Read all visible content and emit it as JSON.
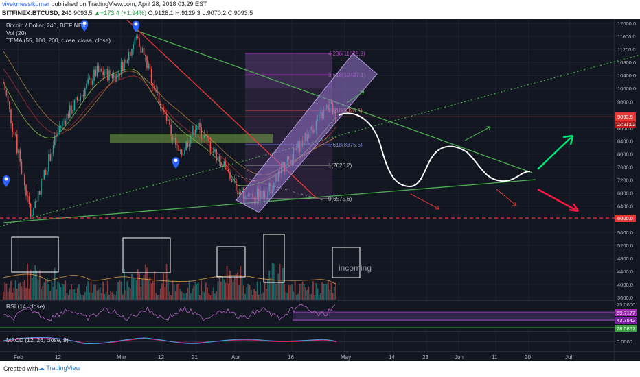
{
  "header": {
    "author": "vivekmessikumar",
    "published_text": "published on TradingView.com, April 28, 2018 03:29 EST",
    "symbol": "BITFINEX:BTCUSD",
    "interval": "240",
    "last": "9093.5",
    "change": "+173.4 (+1.94%)",
    "o": "O:9128.1",
    "h": "H:9129.3",
    "l": "L:9070.2",
    "c": "C:9093.5"
  },
  "legend": {
    "title": "Bitcoin / Dollar, 240, BITFINEX",
    "vol": "Vol (20)",
    "tema": "TEMA (55, 100, 200, close, close, close)",
    "rsi": "RSI (14, close)",
    "macd": "MACD (12, 26, close, 9)"
  },
  "annotations": {
    "incoming": "incoming",
    "fib_4236": "4.236(11025.9)",
    "fib_3618": "3.618(10427.1)",
    "fib_2618": "2.618(9326.1)",
    "fib_1618": "1.618(8375.5)",
    "fib_1": "1(7626.2)",
    "fib_0": "0(6575.6)"
  },
  "price_tags": {
    "current": "9093.5",
    "countdown": "03:31:02",
    "support": "6000.0",
    "rsi_a": "59.7177",
    "rsi_b": "43.7542",
    "rsi_c": "28.5857",
    "rsi_top": "75.0000",
    "macd_zero": "0.0000"
  },
  "chart_data": {
    "type": "line",
    "title": "Bitcoin / Dollar, 240, BITFINEX",
    "price_axis": [
      "12000.0",
      "11600.0",
      "11200.0",
      "10800.0",
      "10400.0",
      "10000.0",
      "9600.0",
      "9200.0",
      "8800.0",
      "8400.0",
      "8000.0",
      "7600.0",
      "7200.0",
      "6800.0",
      "6400.0",
      "6000.0",
      "5600.0",
      "5200.0",
      "4800.0",
      "4400.0",
      "4000.0",
      "3600.0"
    ],
    "time_axis": [
      "Feb",
      "12",
      "Mar",
      "12",
      "21",
      "Apr",
      "16",
      "May",
      "14",
      "23",
      "Jun",
      "11",
      "20",
      "Jul"
    ],
    "series": [
      {
        "x": [
          "Feb 1",
          "Feb 6",
          "Feb 12",
          "Feb 20",
          "Feb 27",
          "Mar 5",
          "Mar 12",
          "Mar 18",
          "Mar 21",
          "Mar 27",
          "Apr 1",
          "Apr 6",
          "Apr 12",
          "Apr 20",
          "Apr 25",
          "Apr 28"
        ],
        "values": [
          10200,
          6100,
          8800,
          10500,
          10400,
          11600,
          9400,
          7900,
          8900,
          7800,
          6800,
          6700,
          7800,
          8800,
          9500,
          9093.5
        ]
      }
    ],
    "ylim": [
      3600,
      12200
    ],
    "fib_levels": [
      {
        "ratio": "4.236",
        "price": 11025.9
      },
      {
        "ratio": "3.618",
        "price": 10427.1
      },
      {
        "ratio": "2.618",
        "price": 9326.1
      },
      {
        "ratio": "1.618",
        "price": 8375.5
      },
      {
        "ratio": "1",
        "price": 7626.2
      },
      {
        "ratio": "0",
        "price": 6575.6
      }
    ],
    "support_level": 6000,
    "rsi_levels": [
      75.0,
      59.7177,
      43.7542,
      28.5857
    ],
    "colors": {
      "background": "#131722",
      "up": "#26a69a",
      "down": "#ef5350",
      "trendline": "#2ecc40",
      "resistance": "#e53935",
      "channel": "#9575cd",
      "projection": "#ffffff"
    }
  },
  "footer": {
    "created_with": "Created with",
    "brand": "TradingView"
  }
}
